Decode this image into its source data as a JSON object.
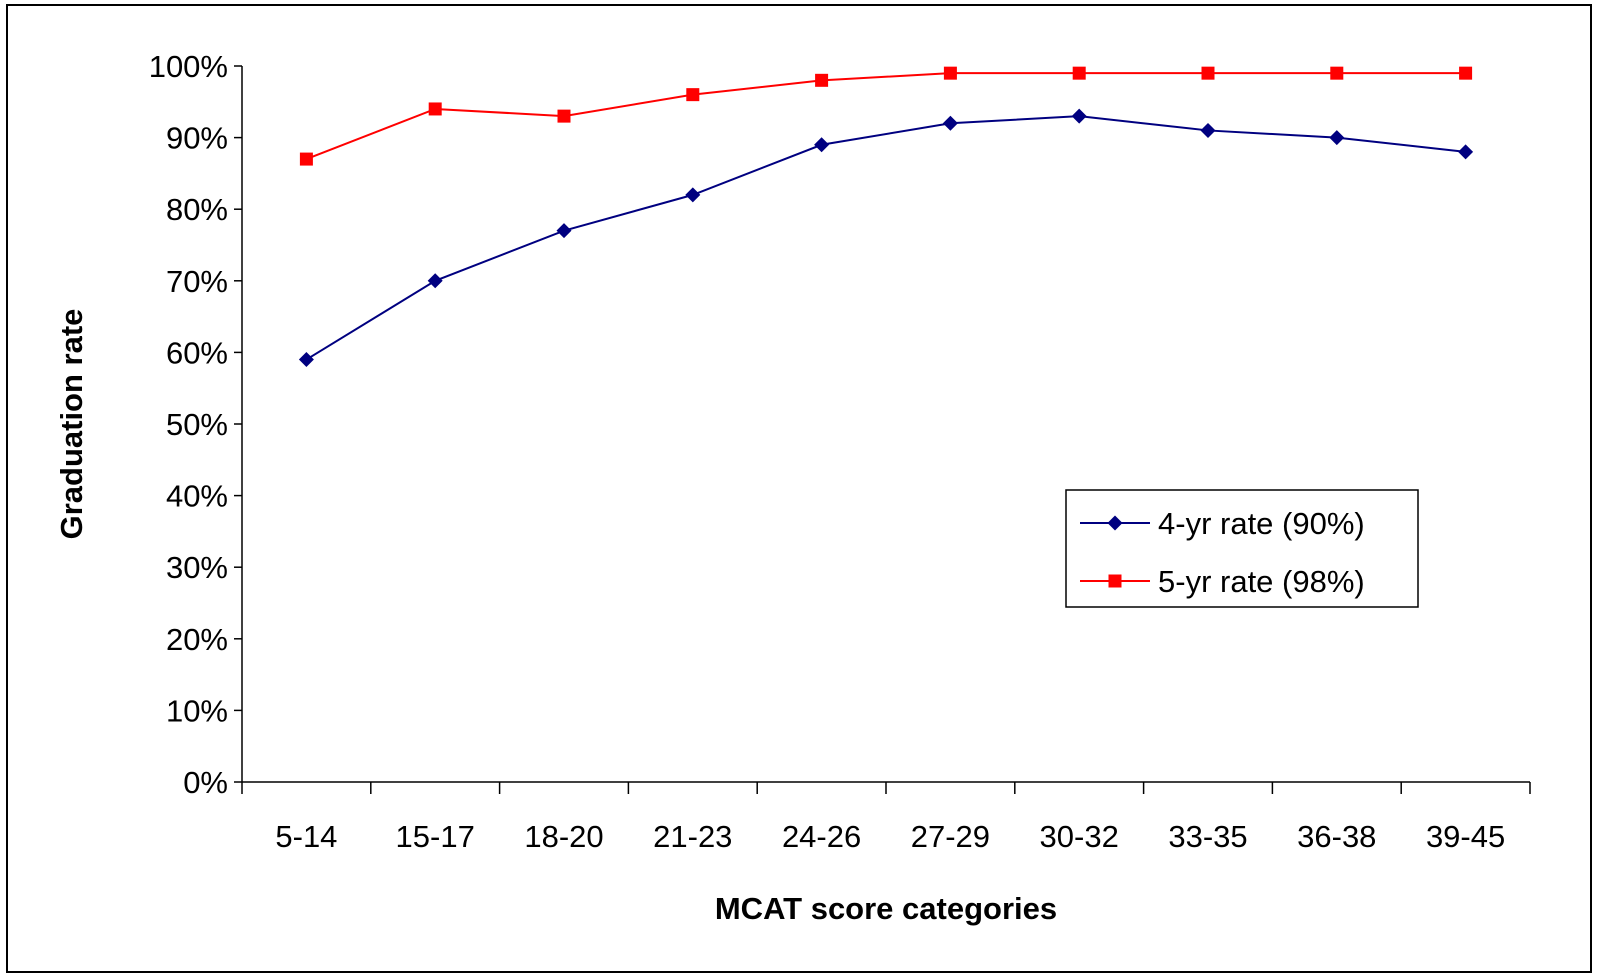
{
  "chart_data": {
    "type": "line",
    "title": "",
    "xlabel": "MCAT score categories",
    "ylabel": "Graduation rate",
    "categories": [
      "5-14",
      "15-17",
      "18-20",
      "21-23",
      "24-26",
      "27-29",
      "30-32",
      "33-35",
      "36-38",
      "39-45"
    ],
    "ylim": [
      0,
      100
    ],
    "yticks": [
      "0%",
      "10%",
      "20%",
      "30%",
      "40%",
      "50%",
      "60%",
      "70%",
      "80%",
      "90%",
      "100%"
    ],
    "grid": false,
    "legend_position": "right-middle",
    "series": [
      {
        "name": "4-yr rate (90%)",
        "color": "#000080",
        "marker": "diamond",
        "values": [
          59,
          70,
          77,
          82,
          89,
          92,
          93,
          91,
          90,
          88
        ]
      },
      {
        "name": "5-yr rate (98%)",
        "color": "#ff0000",
        "marker": "square",
        "values": [
          87,
          94,
          93,
          96,
          98,
          99,
          99,
          99,
          99,
          99
        ]
      }
    ]
  }
}
